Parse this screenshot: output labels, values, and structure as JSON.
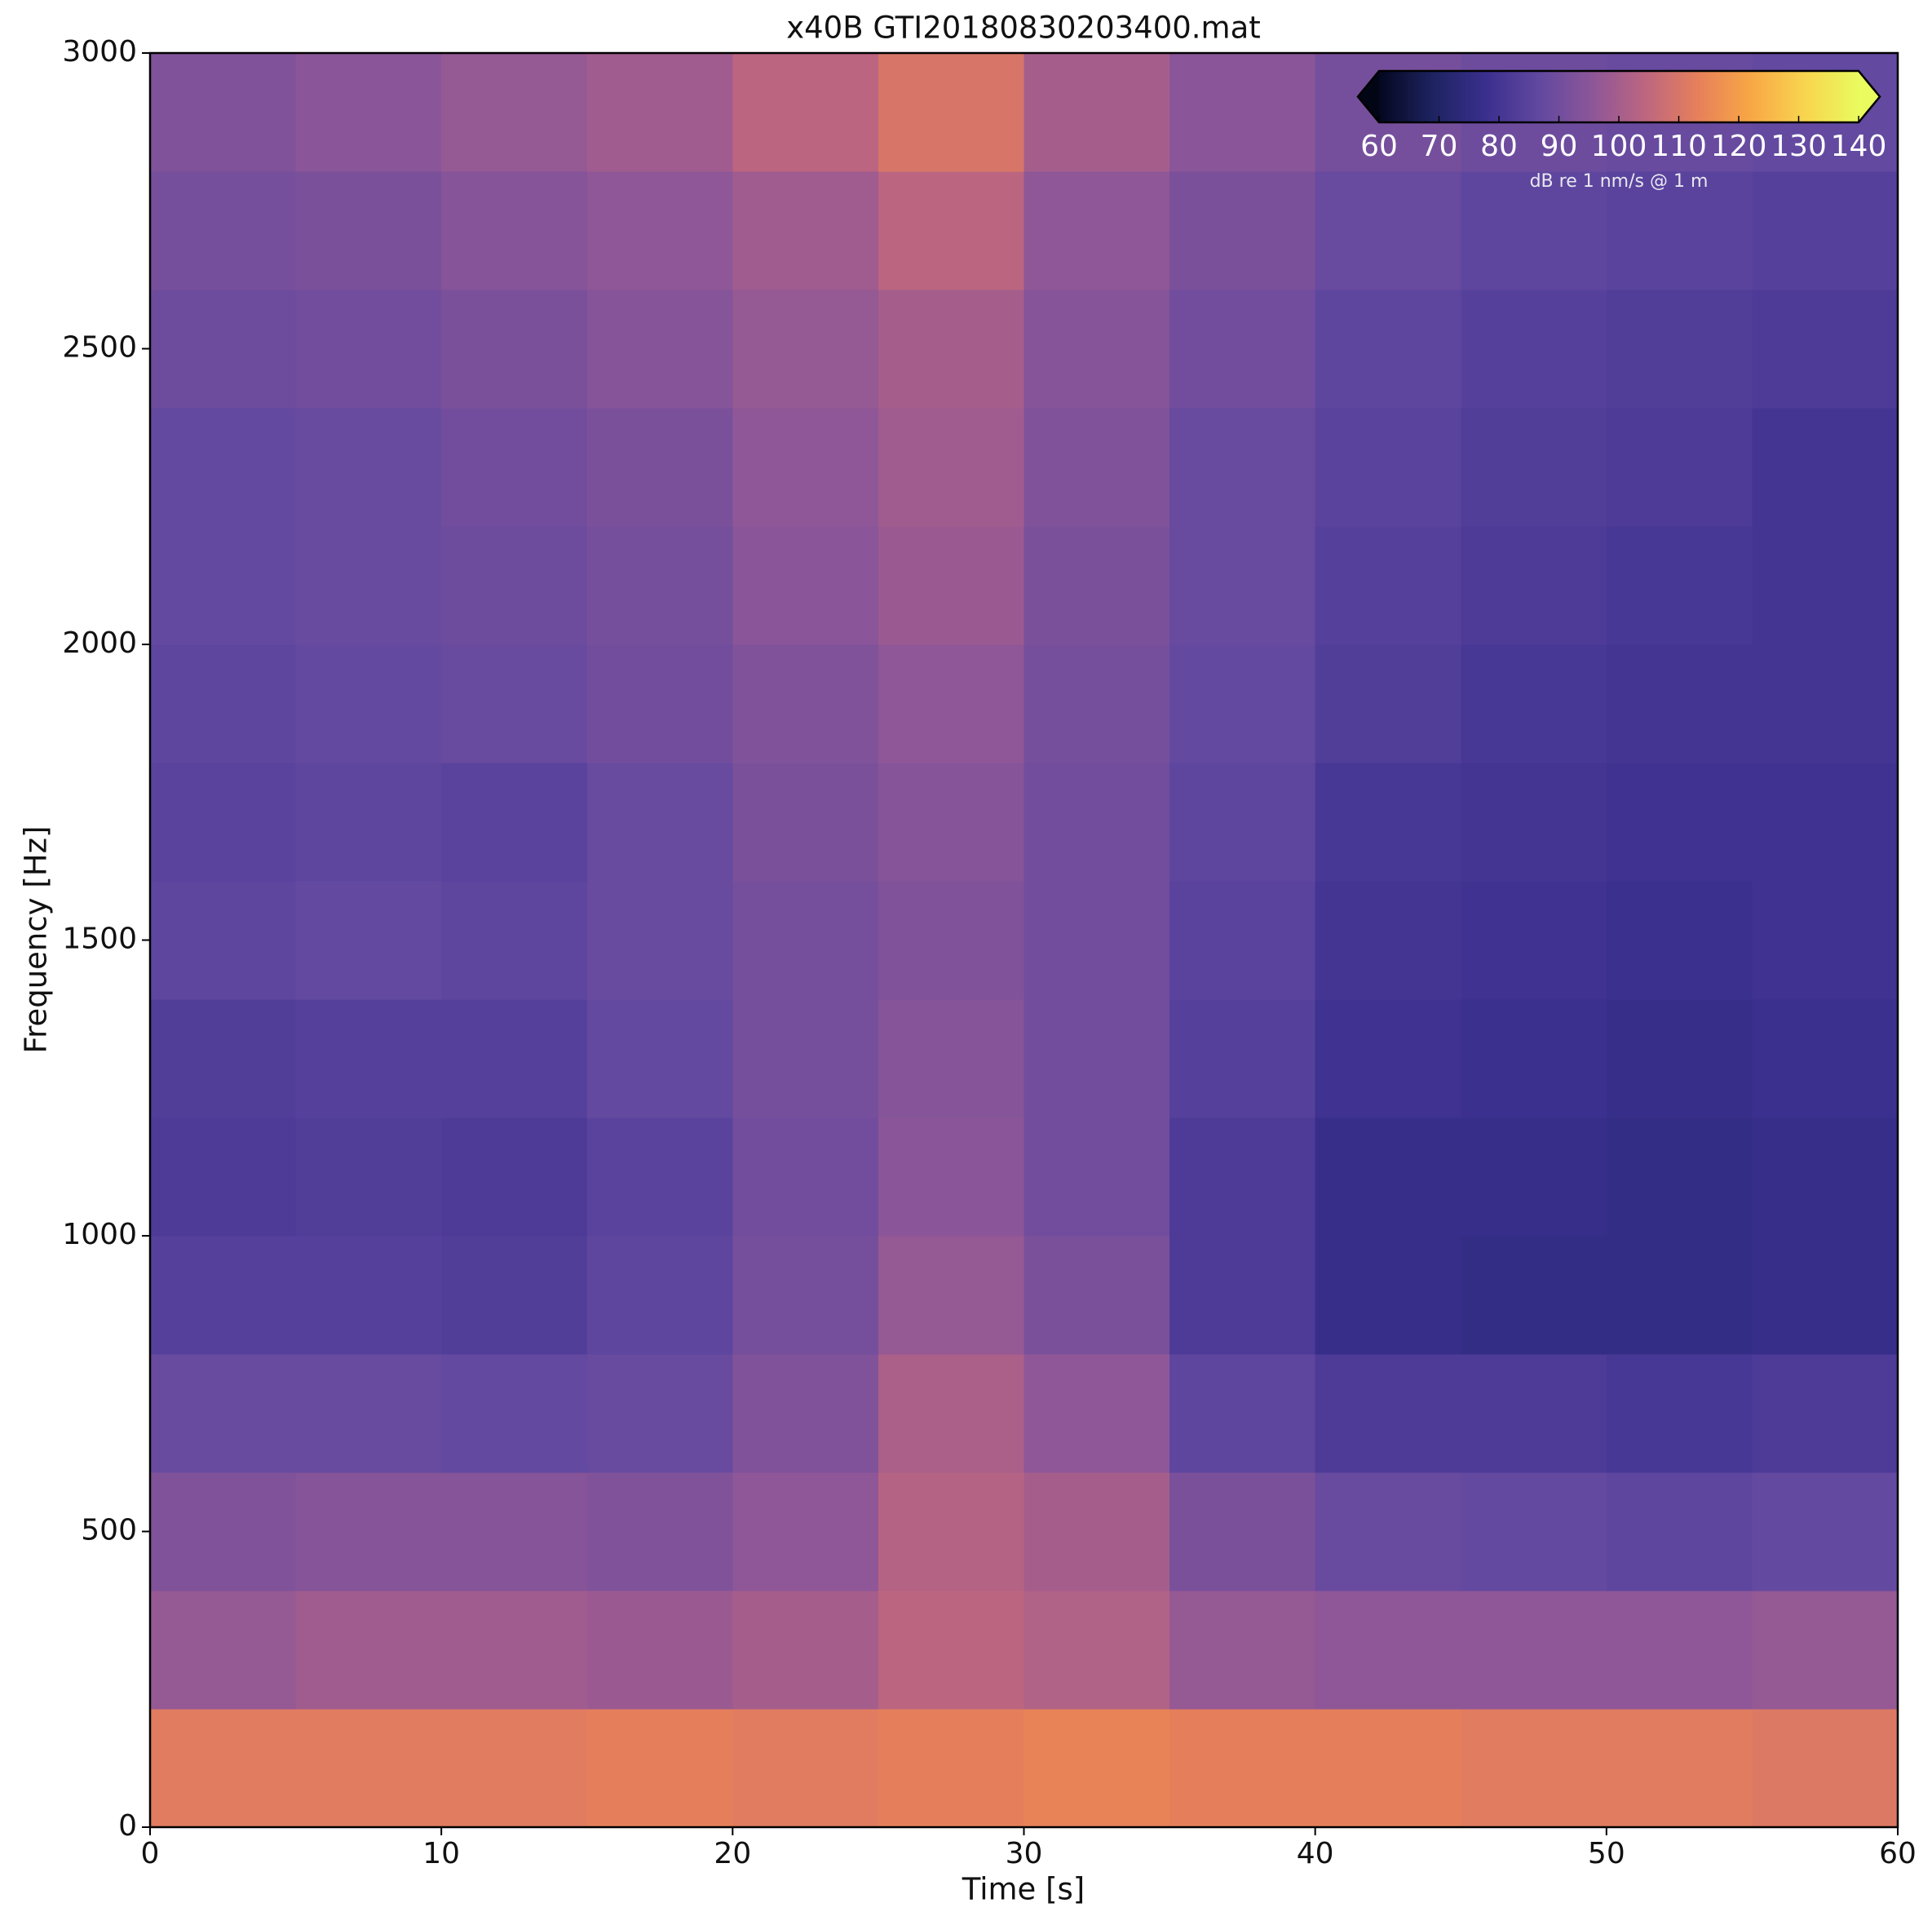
{
  "chart_data": {
    "type": "heatmap",
    "title": "x40B GTI20180830203400.mat",
    "x_label": "Time [s]",
    "y_label": "Frequency [Hz]",
    "xlim": [
      0,
      60
    ],
    "xticks": [
      0,
      10,
      20,
      30,
      40,
      50,
      60
    ],
    "ylim": [
      0,
      3000
    ],
    "yticks": [
      0,
      500,
      1000,
      1500,
      2000,
      2500,
      3000
    ],
    "z": [
      [
        112,
        112,
        112,
        113,
        112,
        113,
        114,
        113,
        113,
        112,
        112,
        111
      ],
      [
        97,
        99,
        99,
        98,
        100,
        104,
        102,
        97,
        96,
        96,
        96,
        97
      ],
      [
        93,
        94,
        94,
        93,
        96,
        103,
        100,
        92,
        88,
        87,
        86,
        87
      ],
      [
        88,
        88,
        87,
        88,
        93,
        101,
        96,
        86,
        82,
        82,
        81,
        82
      ],
      [
        84,
        84,
        83,
        86,
        91,
        97,
        92,
        82,
        77,
        76,
        76,
        77
      ],
      [
        82,
        83,
        82,
        85,
        90,
        95,
        90,
        82,
        77,
        77,
        76,
        77
      ],
      [
        83,
        84,
        84,
        87,
        91,
        94,
        90,
        84,
        79,
        78,
        77,
        78
      ],
      [
        86,
        87,
        86,
        88,
        91,
        93,
        90,
        85,
        80,
        79,
        78,
        79
      ],
      [
        85,
        86,
        85,
        88,
        92,
        94,
        90,
        86,
        81,
        80,
        79,
        79
      ],
      [
        86,
        87,
        88,
        90,
        93,
        96,
        91,
        87,
        83,
        81,
        80,
        80
      ],
      [
        87,
        88,
        89,
        91,
        95,
        98,
        92,
        88,
        84,
        82,
        81,
        80
      ],
      [
        87,
        88,
        90,
        92,
        96,
        99,
        93,
        88,
        85,
        83,
        82,
        80
      ],
      [
        89,
        90,
        92,
        94,
        97,
        100,
        94,
        90,
        86,
        84,
        83,
        82
      ],
      [
        91,
        92,
        94,
        96,
        99,
        104,
        96,
        92,
        88,
        86,
        85,
        84
      ],
      [
        93,
        95,
        97,
        99,
        104,
        110,
        100,
        95,
        91,
        89,
        88,
        87
      ]
    ],
    "colormap": [
      "#04071f",
      "#1d2360",
      "#3a2f8e",
      "#6148a0",
      "#8d5698",
      "#bd6680",
      "#e7805a",
      "#f8a845",
      "#f8d54f",
      "#e9fb5e"
    ],
    "colorbar": {
      "clim": [
        60,
        140
      ],
      "ticks": [
        60,
        70,
        80,
        90,
        100,
        110,
        120,
        130,
        140
      ],
      "label": "dB re 1 nm/s @ 1 m",
      "extend_under_color": "#020514",
      "extend_over_color": "#e9fb5e"
    }
  }
}
